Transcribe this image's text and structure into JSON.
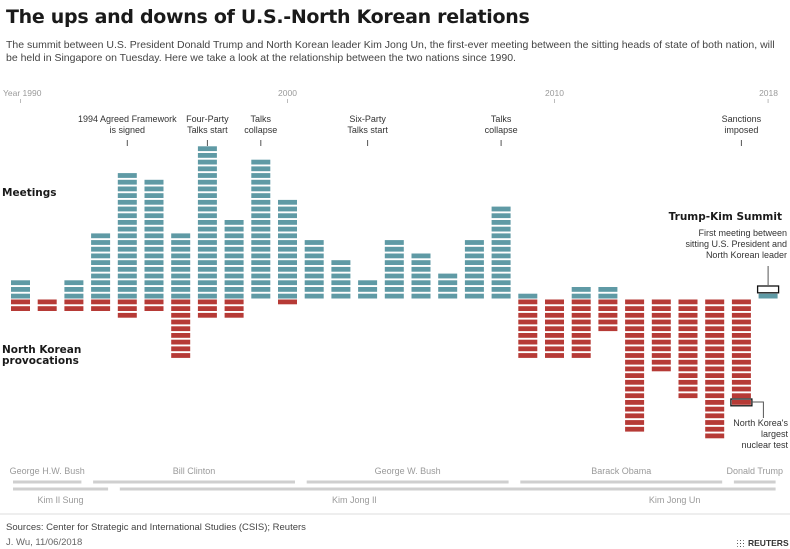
{
  "title": "The ups and downs of U.S.-North Korean relations",
  "subtitle": "The summit between U.S. President Donald Trump and North Korean leader Kim Jong Un, the first-ever meeting between the sitting heads of state of both nation, will be held in Singapore on Tuesday. Here we take a look at the relationship between the two nations since 1990.",
  "source": "Sources: Center for Strategic and International Studies (CSIS); Reuters",
  "credit": "J. Wu, 11/06/2018",
  "brand": "REUTERS",
  "colors": {
    "meetings": "#5f9aa5",
    "provocations": "#b63a36",
    "gray_text": "#9a9a9a",
    "leader_line": "#cfcfcf"
  },
  "chart_data": {
    "type": "bar",
    "x": [
      1990,
      1991,
      1992,
      1993,
      1994,
      1995,
      1996,
      1997,
      1998,
      1999,
      2000,
      2001,
      2002,
      2003,
      2004,
      2005,
      2006,
      2007,
      2008,
      2009,
      2010,
      2011,
      2012,
      2013,
      2014,
      2015,
      2016,
      2017,
      2018
    ],
    "xticks": [
      {
        "year": 1990,
        "label": "Year 1990"
      },
      {
        "year": 2000,
        "label": "2000"
      },
      {
        "year": 2010,
        "label": "2010"
      },
      {
        "year": 2018,
        "label": "2018"
      }
    ],
    "series": [
      {
        "name": "Meetings",
        "values": [
          3,
          0,
          3,
          10,
          19,
          18,
          10,
          23,
          12,
          21,
          15,
          9,
          6,
          3,
          9,
          7,
          4,
          9,
          14,
          1,
          0,
          2,
          2,
          0,
          0,
          0,
          0,
          0,
          2
        ]
      },
      {
        "name": "North Korean provocations",
        "values": [
          2,
          2,
          2,
          2,
          3,
          2,
          9,
          3,
          3,
          0,
          1,
          0,
          0,
          0,
          0,
          0,
          0,
          0,
          0,
          9,
          9,
          9,
          5,
          20,
          11,
          15,
          21,
          16,
          0
        ]
      }
    ],
    "annotations": [
      {
        "year": 1994,
        "text": "1994 Agreed Framework\nis signed"
      },
      {
        "year": 1997,
        "text": "Four-Party\nTalks start"
      },
      {
        "year": 1999,
        "text": "Talks\ncollapse"
      },
      {
        "year": 2003,
        "text": "Six-Party\nTalks start"
      },
      {
        "year": 2008,
        "text": "Talks\ncollapse"
      },
      {
        "year": 2017,
        "text": "Sanctions\nimposed"
      }
    ],
    "callouts": [
      {
        "year": 2018,
        "series": "Meetings",
        "title": "Trump-Kim Summit",
        "text": "First meeting between\nsitting U.S. President and\nNorth Korean leader"
      },
      {
        "year": 2017,
        "series": "North Korean provocations",
        "text": "North Korea's\nlargest\nnuclear test"
      }
    ],
    "presidents": [
      {
        "name": "George H.W. Bush",
        "start": 1990,
        "end": 1992
      },
      {
        "name": "Bill Clinton",
        "start": 1993,
        "end": 2000
      },
      {
        "name": "George W. Bush",
        "start": 2001,
        "end": 2008
      },
      {
        "name": "Barack Obama",
        "start": 2009,
        "end": 2016
      },
      {
        "name": "Donald Trump",
        "start": 2017,
        "end": 2018
      }
    ],
    "nk_leaders": [
      {
        "name": "Kim Il Sung",
        "start": 1990,
        "end": 1993
      },
      {
        "name": "Kim Jong Il",
        "start": 1994,
        "end": 2011
      },
      {
        "name": "Kim Jong Un",
        "start": 2011,
        "end": 2018
      }
    ]
  }
}
